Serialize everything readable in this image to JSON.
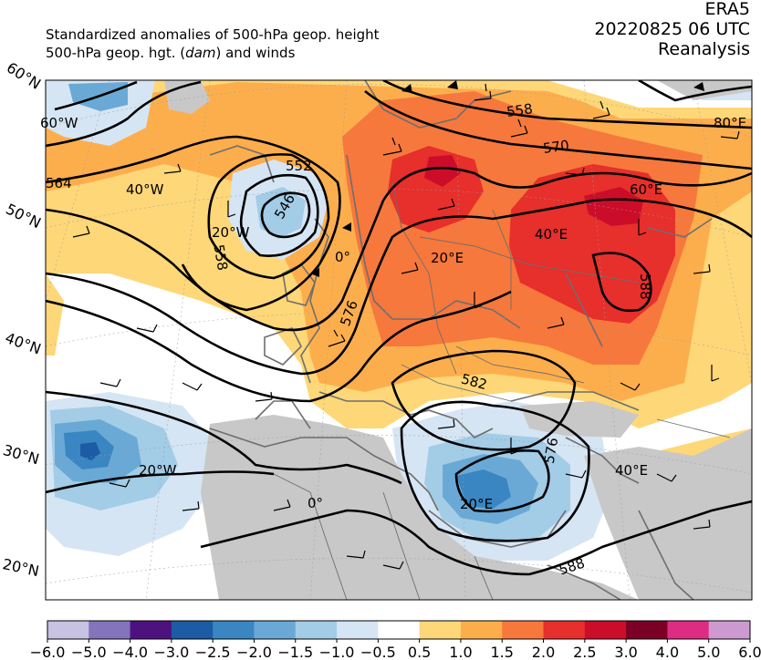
{
  "header": {
    "line1": "Standardized anomalies of 500-hPa geop. height",
    "line2_prefix": "500-hPa geop. hgt. (",
    "line2_unit": "dam",
    "line2_suffix": ") and winds",
    "source": "ERA5",
    "datetime": "20220825 06 UTC",
    "product": "Reanalysis"
  },
  "map": {
    "lat_labels": [
      "60°N",
      "50°N",
      "40°N",
      "30°N",
      "20°N"
    ],
    "lon_labels": [
      "60°W",
      "40°W",
      "20°W",
      "0°",
      "20°E",
      "40°E",
      "60°E",
      "80°E",
      "20°W",
      "0°",
      "20°E",
      "40°E"
    ],
    "contour_labels": [
      "558",
      "570",
      "552",
      "546",
      "558",
      "564",
      "576",
      "582",
      "576",
      "588",
      "588"
    ],
    "colors": {
      "ocean_bg": "#ffffff",
      "land_masked": "#c8c8c8",
      "coastline": "#6e6e6e",
      "contour": "#000000"
    }
  },
  "colorbar": {
    "ticks": [
      "−6.0",
      "−5.0",
      "−4.0",
      "−3.0",
      "−2.5",
      "−2.0",
      "−1.5",
      "−1.0",
      "−0.5",
      "0.5",
      "1.0",
      "1.5",
      "2.0",
      "2.5",
      "3.0",
      "4.0",
      "5.0",
      "6.0"
    ],
    "colors": [
      "#c8c3e3",
      "#8474bb",
      "#4e127f",
      "#1b5ca4",
      "#3a86c2",
      "#6aa9d5",
      "#a3cce6",
      "#d5e5f4",
      "#ffffff",
      "#fed778",
      "#fdae4c",
      "#f6783c",
      "#e72f2b",
      "#cb0d2a",
      "#7a0026",
      "#de2c83",
      "#cc9ad0"
    ]
  }
}
